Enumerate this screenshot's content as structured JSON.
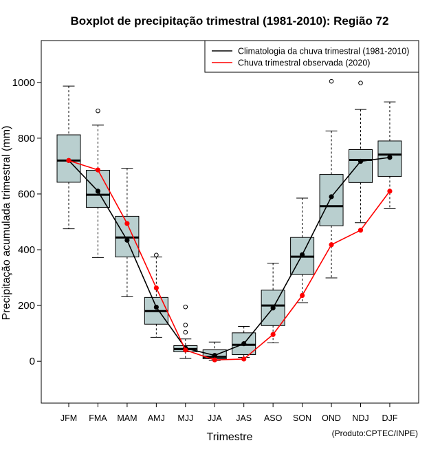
{
  "chart_data": {
    "type": "boxplot",
    "title": "Boxplot de precipitação trimestral (1981-2010): Região 72",
    "xlabel": "Trimestre",
    "ylabel": "Precipitação acumulada trimestral (mm)",
    "ylim": [
      -150,
      1150
    ],
    "yticks": [
      0,
      200,
      400,
      600,
      800,
      1000
    ],
    "categories": [
      "JFM",
      "FMA",
      "MAM",
      "AMJ",
      "MJJ",
      "JJA",
      "JAS",
      "ASO",
      "SON",
      "OND",
      "NDJ",
      "DJF"
    ],
    "box_color": "#b9cfcf",
    "boxes": [
      {
        "min": 475,
        "q1": 642,
        "median": 720,
        "q3": 812,
        "max": 987,
        "outliers": []
      },
      {
        "min": 372,
        "q1": 552,
        "median": 597,
        "q3": 685,
        "max": 847,
        "outliers": [
          898
        ]
      },
      {
        "min": 231,
        "q1": 374,
        "median": 444,
        "q3": 520,
        "max": 692,
        "outliers": []
      },
      {
        "min": 86,
        "q1": 133,
        "median": 180,
        "q3": 229,
        "max": 374,
        "outliers": [
          381
        ]
      },
      {
        "min": 10,
        "q1": 34,
        "median": 44,
        "q3": 56,
        "max": 80,
        "outliers": [
          104,
          130,
          195
        ]
      },
      {
        "min": 3,
        "q1": 9,
        "median": 16,
        "q3": 41,
        "max": 69,
        "outliers": []
      },
      {
        "min": 14,
        "q1": 24,
        "median": 59,
        "q3": 102,
        "max": 125,
        "outliers": []
      },
      {
        "min": 66,
        "q1": 128,
        "median": 200,
        "q3": 255,
        "max": 352,
        "outliers": []
      },
      {
        "min": 210,
        "q1": 311,
        "median": 375,
        "q3": 444,
        "max": 585,
        "outliers": []
      },
      {
        "min": 299,
        "q1": 486,
        "median": 556,
        "q3": 670,
        "max": 826,
        "outliers": [
          1004
        ]
      },
      {
        "min": 497,
        "q1": 641,
        "median": 722,
        "q3": 759,
        "max": 903,
        "outliers": [
          998
        ]
      },
      {
        "min": 547,
        "q1": 663,
        "median": 741,
        "q3": 790,
        "max": 930,
        "outliers": []
      }
    ],
    "series": [
      {
        "name": "Climatologia da chuva trimestral (1981-2010)",
        "color": "#000000",
        "values": [
          720,
          610,
          434,
          194,
          47,
          21,
          63,
          191,
          382,
          590,
          717,
          731
        ]
      },
      {
        "name": "Chuva trimestral observada (2020)",
        "color": "#ff0000",
        "values": [
          720,
          686,
          494,
          263,
          40,
          5,
          8,
          96,
          236,
          418,
          470,
          610
        ]
      }
    ],
    "legend_position": "top-right",
    "credit": "(Produto:CPTEC/INPE)"
  }
}
